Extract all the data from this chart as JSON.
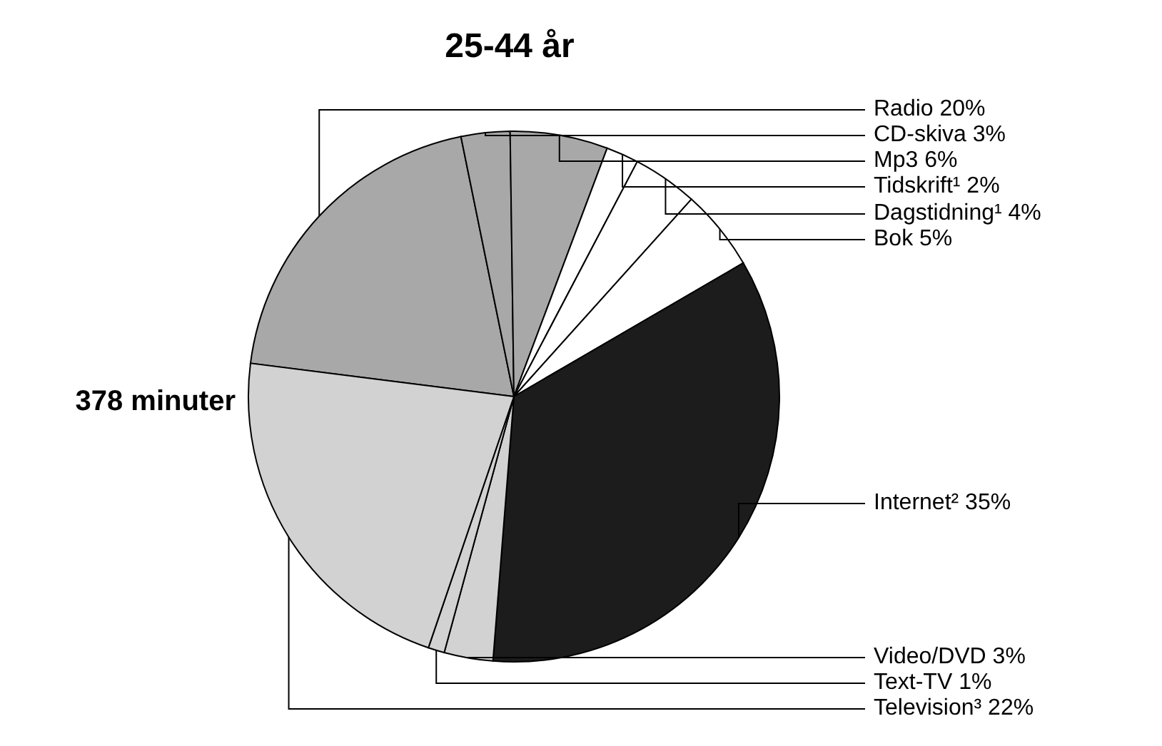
{
  "chart_data": {
    "type": "pie",
    "title": "25-44 år",
    "annotations": [
      "378 minuter"
    ],
    "categories": [
      "Radio",
      "CD-skiva",
      "Mp3",
      "Tidskrift¹",
      "Dagstidning¹",
      "Bok",
      "Internet²",
      "Video/DVD",
      "Text-TV",
      "Television³"
    ],
    "values": [
      20,
      3,
      6,
      2,
      4,
      5,
      35,
      3,
      1,
      22
    ],
    "colors": [
      "#a8a8a8",
      "#a8a8a8",
      "#a8a8a8",
      "#ffffff",
      "#ffffff",
      "#ffffff",
      "#1c1c1c",
      "#d2d2d2",
      "#d2d2d2",
      "#d2d2d2"
    ],
    "value_labels": [
      "20%",
      "3%",
      "6%",
      "2%",
      "4%",
      "5%",
      "35%",
      "3%",
      "1%",
      "22%"
    ]
  }
}
